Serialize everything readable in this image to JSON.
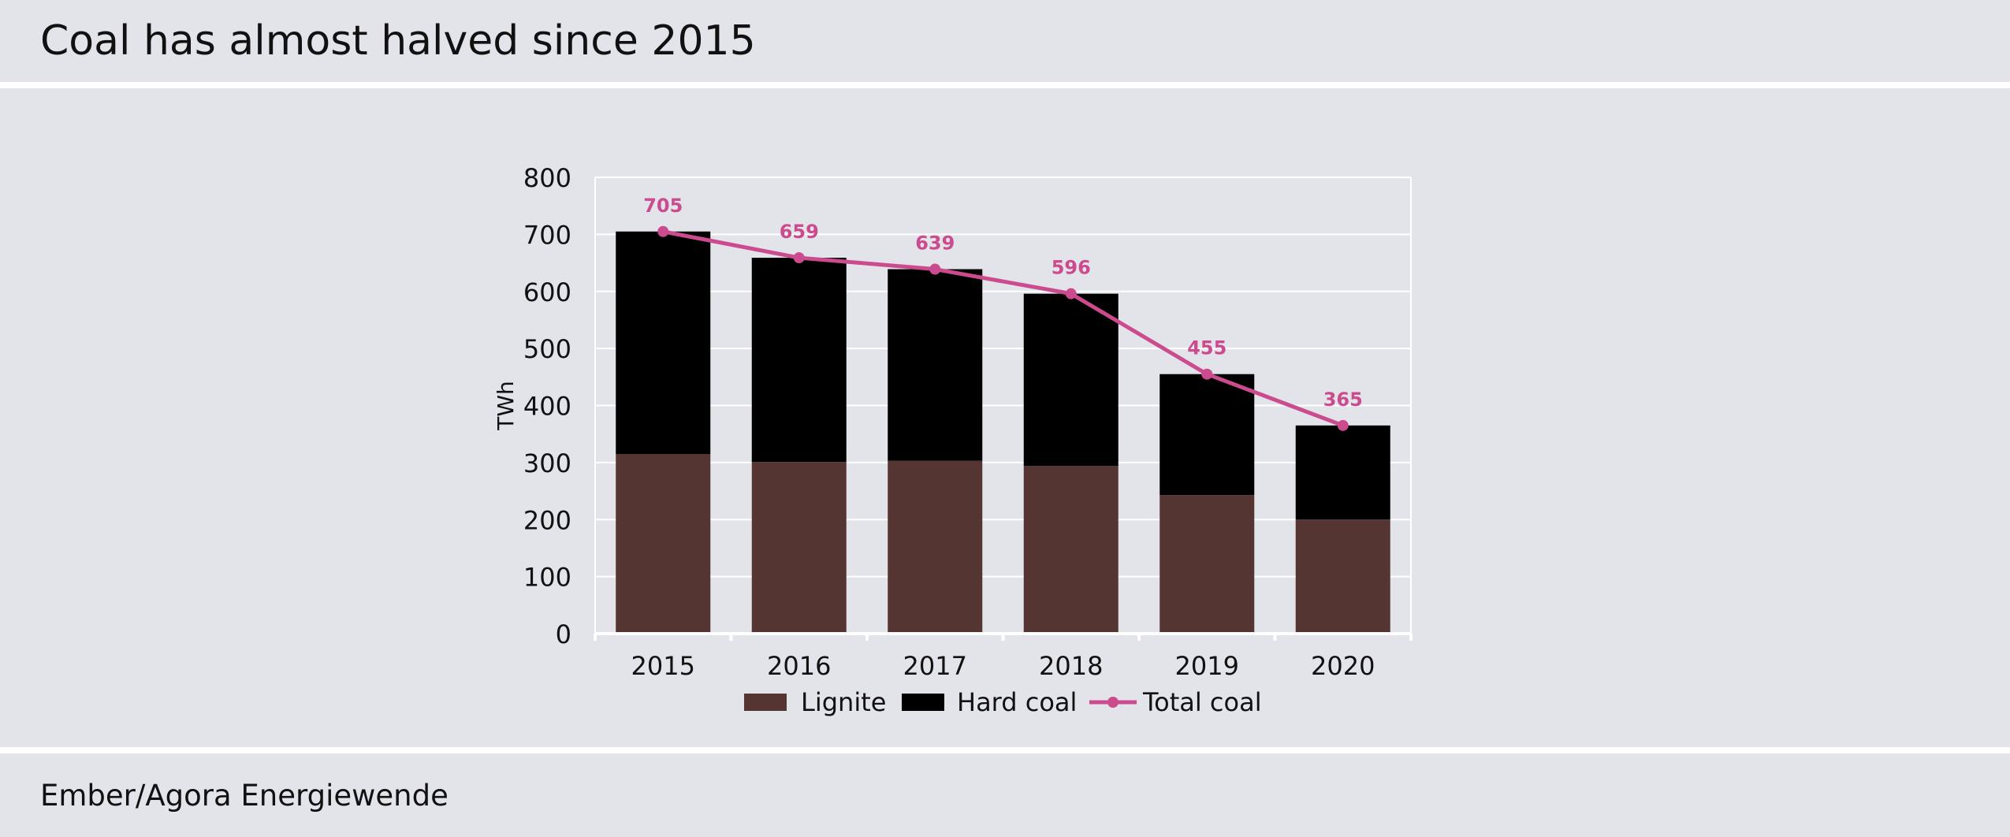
{
  "header": {
    "title": "Coal has almost halved since 2015"
  },
  "footer": {
    "source": "Ember/Agora Energiewende"
  },
  "colors": {
    "background": "#e3e4e9",
    "lignite": "#543532",
    "hard_coal": "#000000",
    "total_coal": "#cc4b8f",
    "grid": "#ffffff"
  },
  "chart_data": {
    "type": "bar",
    "stacked": true,
    "categories": [
      "2015",
      "2016",
      "2017",
      "2018",
      "2019",
      "2020"
    ],
    "ylabel": "TWh",
    "xlabel": "",
    "ylim": [
      0,
      800
    ],
    "yticks": [
      0,
      100,
      200,
      300,
      400,
      500,
      600,
      700,
      800
    ],
    "grid": true,
    "legend_position": "bottom",
    "series": [
      {
        "name": "Lignite",
        "type": "bar",
        "values": [
          315,
          301,
          303,
          294,
          243,
          200
        ]
      },
      {
        "name": "Hard coal",
        "type": "bar",
        "values": [
          390,
          358,
          336,
          302,
          212,
          165
        ]
      },
      {
        "name": "Total coal",
        "type": "line",
        "values": [
          705,
          659,
          639,
          596,
          455,
          365
        ]
      }
    ]
  }
}
